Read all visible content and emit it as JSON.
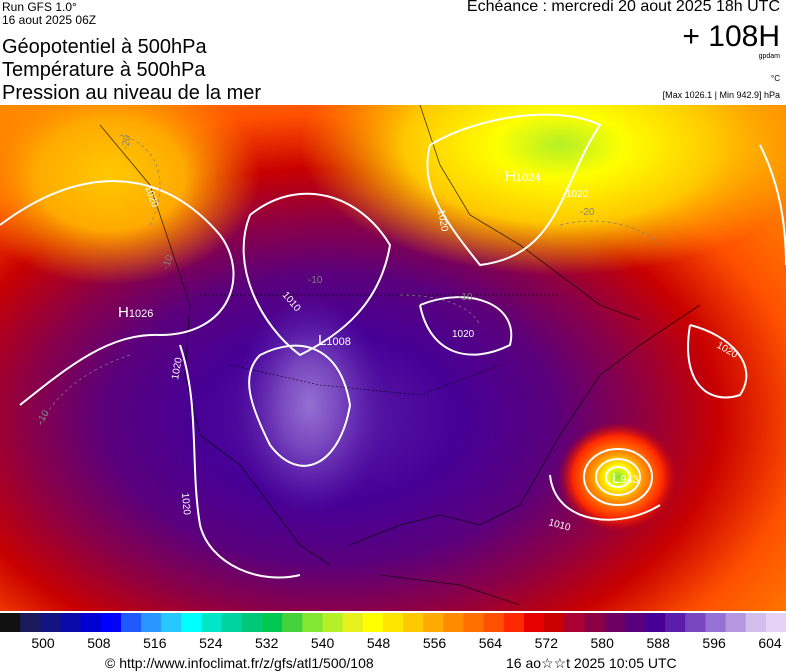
{
  "header": {
    "run": "Run GFS 1.0°",
    "run_date": "16 aout 2025 06Z",
    "titles": [
      "Géopotentiel à 500hPa",
      "Température à 500hPa",
      "Pression au niveau de la mer"
    ],
    "echeance": "Echéance : mercredi 20 aout 2025 18h UTC",
    "lead": "+ 108H",
    "unit_gpdam": "gpdam",
    "unit_temp": "°C",
    "maxmin": "[Max 1026.1 | Min 942.9] hPa"
  },
  "map": {
    "pressure_centers": [
      {
        "type": "H",
        "value": "1024"
      },
      {
        "type": "H",
        "value": "1026"
      },
      {
        "type": "L",
        "value": "1008"
      },
      {
        "type": "L",
        "value": "943"
      }
    ],
    "isobar_labels": [
      "1020",
      "1020",
      "1020",
      "1020",
      "1020",
      "1010",
      "1020",
      "1020",
      "1010"
    ],
    "temperature_labels": [
      "-20",
      "-20",
      "-10",
      "-10",
      "-10",
      "-10"
    ]
  },
  "colorbar": {
    "colors": [
      "#111111",
      "#1a1a5a",
      "#141480",
      "#0a0aa8",
      "#0000d2",
      "#0000ff",
      "#1e5aff",
      "#2896ff",
      "#28c8ff",
      "#00ffff",
      "#00e6c8",
      "#00d2a0",
      "#00c878",
      "#00c850",
      "#46d23c",
      "#82e632",
      "#b4f028",
      "#e6f01e",
      "#ffff00",
      "#ffe600",
      "#ffc800",
      "#ffaa00",
      "#ff8c00",
      "#ff6e00",
      "#ff5000",
      "#ff2800",
      "#e60000",
      "#c80000",
      "#aa0032",
      "#8c0046",
      "#6e0064",
      "#5a007d",
      "#460096",
      "#5a1eaa",
      "#7846be",
      "#9670d2",
      "#b496e1",
      "#d2beeb",
      "#e6d2f5"
    ],
    "labels": [
      "500",
      "508",
      "516",
      "524",
      "532",
      "540",
      "548",
      "556",
      "564",
      "572",
      "580",
      "588",
      "596",
      "604"
    ]
  },
  "footer": {
    "credit": "© http://www.infoclimat.fr/z/gfs/atl1/500/108",
    "issued": "16 ao☆☆t 2025 10:05 UTC"
  }
}
